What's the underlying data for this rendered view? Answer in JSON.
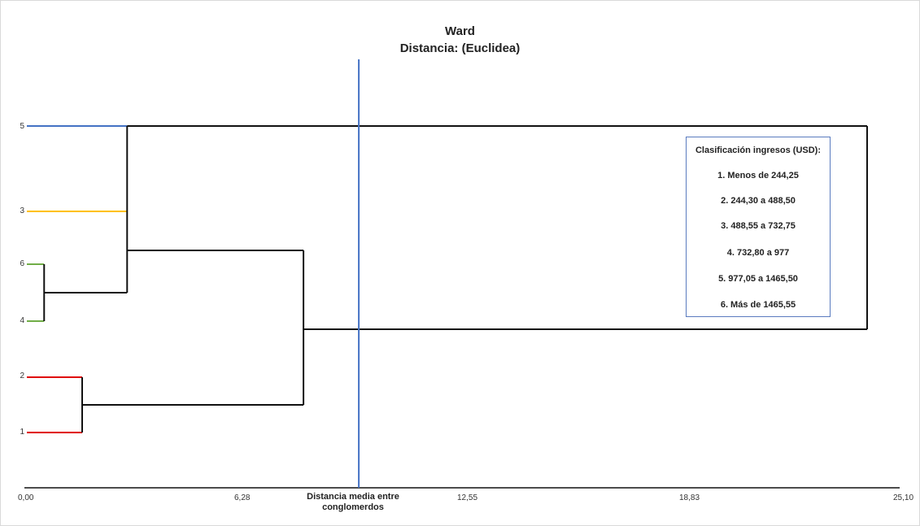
{
  "chart_data": {
    "type": "dendrogram",
    "title": "Ward",
    "subtitle": "Distancia: (Euclidea)",
    "xlabel": "Distancia media entre conglomerdos",
    "xlim": [
      0,
      25.1
    ],
    "x_ticks": [
      "0,00",
      "6,28",
      "12,55",
      "18,83",
      "25,10"
    ],
    "leaf_order": [
      "5",
      "3",
      "6",
      "4",
      "2",
      "1"
    ],
    "leaf_colors": {
      "5": "#4472c4",
      "3": "#ffc000",
      "6": "#70ad47",
      "4": "#70ad47",
      "2": "#e00000",
      "1": "#e00000"
    },
    "merges": [
      {
        "left": "6",
        "right": "4",
        "height": 0.5
      },
      {
        "left": "2",
        "right": "1",
        "height": 1.6
      },
      {
        "left": "3",
        "right": "6+4",
        "height": 2.9
      },
      {
        "left": "5",
        "right": "3+6+4",
        "height": 2.9
      },
      {
        "left": "5+3+6+4",
        "right": "2+1",
        "height": 8.0
      },
      {
        "left": "all",
        "right": "5",
        "height": 24.3
      }
    ],
    "cut_line": 9.6,
    "cut_line_color": "#4472c4",
    "legend": {
      "title": "Clasificación ingresos (USD):",
      "items": [
        "1. Menos de 244,25",
        "2. 244,30 a 488,50",
        "3. 488,55 a 732,75",
        "4. 732,80 a 977",
        "5. 977,05 a 1465,50",
        "6. Más de 1465,55"
      ]
    }
  }
}
